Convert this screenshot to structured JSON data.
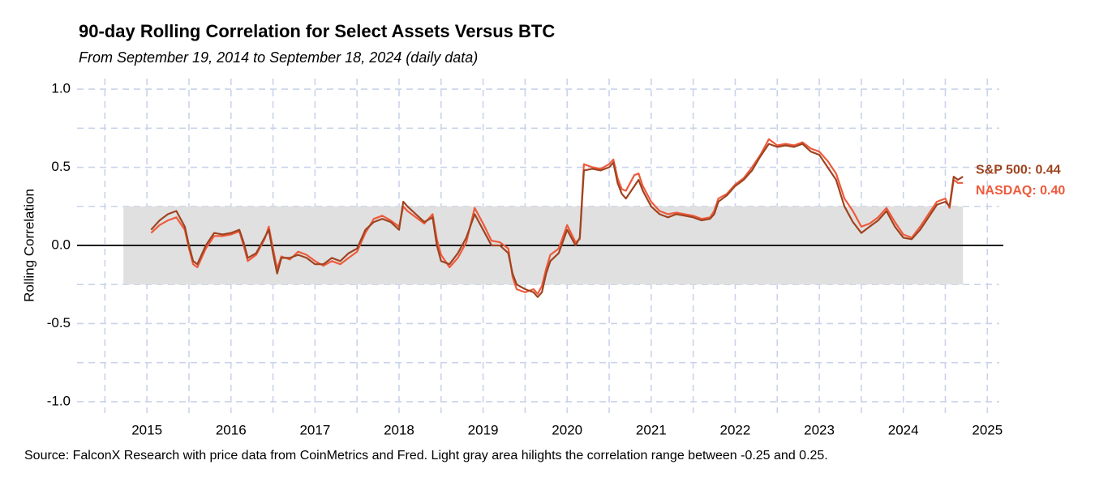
{
  "chart_data": {
    "type": "line",
    "title": "90-day Rolling Correlation for Select Assets Versus BTC",
    "subtitle": "From September 19, 2014 to September 18, 2024 (daily data)",
    "y_label": "Rolling Correlation",
    "source": "Source: FalconX Research with price data from CoinMetrics and Fred. Light gray area hilights the correlation range between -0.25 and 0.25.",
    "xlim": [
      2014.13,
      2025.2
    ],
    "xticks": [
      2015,
      2016,
      2017,
      2018,
      2019,
      2020,
      2021,
      2022,
      2023,
      2024,
      2025
    ],
    "xminor": [
      2014.5,
      2015.5,
      2016.5,
      2017.5,
      2018.5,
      2019.5,
      2020.5,
      2021.5,
      2022.5,
      2023.5,
      2024.5
    ],
    "ylim": [
      -1.08,
      1.08
    ],
    "yticks": [
      {
        "value": -1,
        "label": "-1.0"
      },
      {
        "value": -0.5,
        "label": "-0.5"
      },
      {
        "value": 0,
        "label": "0.0"
      },
      {
        "value": 0.5,
        "label": "0.5"
      },
      {
        "value": 1,
        "label": "1.0"
      }
    ],
    "yminor": [
      -0.75,
      -0.25,
      0.25,
      0.75
    ],
    "grid": true,
    "band": [
      -0.25,
      0.25
    ],
    "band_x": [
      2014.72,
      2024.71
    ],
    "band_color": "#e0e0e0",
    "hline": 0,
    "x": [
      2015.05,
      2015.15,
      2015.25,
      2015.35,
      2015.45,
      2015.5,
      2015.55,
      2015.6,
      2015.7,
      2015.8,
      2015.9,
      2016.0,
      2016.1,
      2016.15,
      2016.2,
      2016.3,
      2016.4,
      2016.45,
      2016.5,
      2016.55,
      2016.6,
      2016.7,
      2016.8,
      2016.9,
      2017.0,
      2017.1,
      2017.2,
      2017.3,
      2017.4,
      2017.5,
      2017.6,
      2017.7,
      2017.8,
      2017.9,
      2018.0,
      2018.05,
      2018.1,
      2018.2,
      2018.3,
      2018.4,
      2018.45,
      2018.5,
      2018.6,
      2018.7,
      2018.8,
      2018.9,
      2019.0,
      2019.1,
      2019.2,
      2019.3,
      2019.35,
      2019.4,
      2019.5,
      2019.6,
      2019.65,
      2019.7,
      2019.75,
      2019.8,
      2019.9,
      2020.0,
      2020.1,
      2020.15,
      2020.2,
      2020.3,
      2020.4,
      2020.5,
      2020.55,
      2020.6,
      2020.65,
      2020.7,
      2020.8,
      2020.85,
      2020.9,
      2021.0,
      2021.1,
      2021.2,
      2021.3,
      2021.4,
      2021.5,
      2021.6,
      2021.7,
      2021.75,
      2021.8,
      2021.9,
      2022.0,
      2022.1,
      2022.2,
      2022.3,
      2022.4,
      2022.5,
      2022.6,
      2022.7,
      2022.8,
      2022.9,
      2023.0,
      2023.1,
      2023.2,
      2023.3,
      2023.4,
      2023.5,
      2023.6,
      2023.7,
      2023.8,
      2023.9,
      2024.0,
      2024.1,
      2024.2,
      2024.3,
      2024.4,
      2024.5,
      2024.55,
      2024.6,
      2024.65,
      2024.71
    ],
    "series": [
      {
        "name": "NASDAQ",
        "end_label": "NASDAQ: 0.40",
        "color": "#ee5a3c",
        "values": [
          0.08,
          0.13,
          0.16,
          0.18,
          0.1,
          -0.02,
          -0.12,
          -0.14,
          -0.02,
          0.06,
          0.06,
          0.07,
          0.09,
          0.0,
          -0.1,
          -0.06,
          0.04,
          0.12,
          -0.02,
          -0.15,
          -0.07,
          -0.09,
          -0.04,
          -0.06,
          -0.1,
          -0.13,
          -0.1,
          -0.12,
          -0.08,
          -0.04,
          0.08,
          0.17,
          0.19,
          0.16,
          0.12,
          0.25,
          0.22,
          0.18,
          0.14,
          0.2,
          0.04,
          -0.06,
          -0.14,
          -0.08,
          0.02,
          0.24,
          0.14,
          0.03,
          0.02,
          -0.02,
          -0.2,
          -0.28,
          -0.3,
          -0.28,
          -0.31,
          -0.26,
          -0.15,
          -0.06,
          -0.02,
          0.13,
          0.02,
          0.04,
          0.52,
          0.5,
          0.49,
          0.52,
          0.55,
          0.43,
          0.36,
          0.35,
          0.45,
          0.46,
          0.38,
          0.28,
          0.22,
          0.2,
          0.21,
          0.2,
          0.19,
          0.17,
          0.18,
          0.22,
          0.3,
          0.33,
          0.39,
          0.43,
          0.5,
          0.58,
          0.68,
          0.64,
          0.65,
          0.64,
          0.66,
          0.62,
          0.6,
          0.54,
          0.46,
          0.3,
          0.22,
          0.12,
          0.14,
          0.18,
          0.24,
          0.15,
          0.07,
          0.05,
          0.12,
          0.2,
          0.28,
          0.3,
          0.24,
          0.42,
          0.4,
          0.4
        ]
      },
      {
        "name": "S&P 500",
        "end_label": "S&P 500: 0.44",
        "color": "#9e4420",
        "values": [
          0.1,
          0.16,
          0.2,
          0.22,
          0.12,
          0.0,
          -0.1,
          -0.12,
          0.0,
          0.08,
          0.07,
          0.08,
          0.1,
          0.02,
          -0.08,
          -0.05,
          0.05,
          0.1,
          -0.05,
          -0.18,
          -0.08,
          -0.08,
          -0.06,
          -0.08,
          -0.12,
          -0.12,
          -0.08,
          -0.1,
          -0.05,
          -0.02,
          0.1,
          0.15,
          0.17,
          0.15,
          0.1,
          0.28,
          0.25,
          0.2,
          0.15,
          0.18,
          0.0,
          -0.1,
          -0.12,
          -0.05,
          0.05,
          0.2,
          0.1,
          0.0,
          0.0,
          -0.05,
          -0.18,
          -0.25,
          -0.28,
          -0.3,
          -0.33,
          -0.3,
          -0.18,
          -0.1,
          -0.05,
          0.1,
          0.0,
          0.05,
          0.48,
          0.49,
          0.48,
          0.5,
          0.53,
          0.4,
          0.33,
          0.3,
          0.38,
          0.42,
          0.35,
          0.25,
          0.2,
          0.18,
          0.2,
          0.19,
          0.18,
          0.16,
          0.17,
          0.2,
          0.28,
          0.32,
          0.38,
          0.42,
          0.48,
          0.57,
          0.65,
          0.63,
          0.64,
          0.63,
          0.65,
          0.6,
          0.58,
          0.5,
          0.42,
          0.25,
          0.15,
          0.08,
          0.12,
          0.16,
          0.22,
          0.12,
          0.05,
          0.04,
          0.1,
          0.18,
          0.26,
          0.28,
          0.25,
          0.44,
          0.42,
          0.44
        ]
      }
    ]
  }
}
